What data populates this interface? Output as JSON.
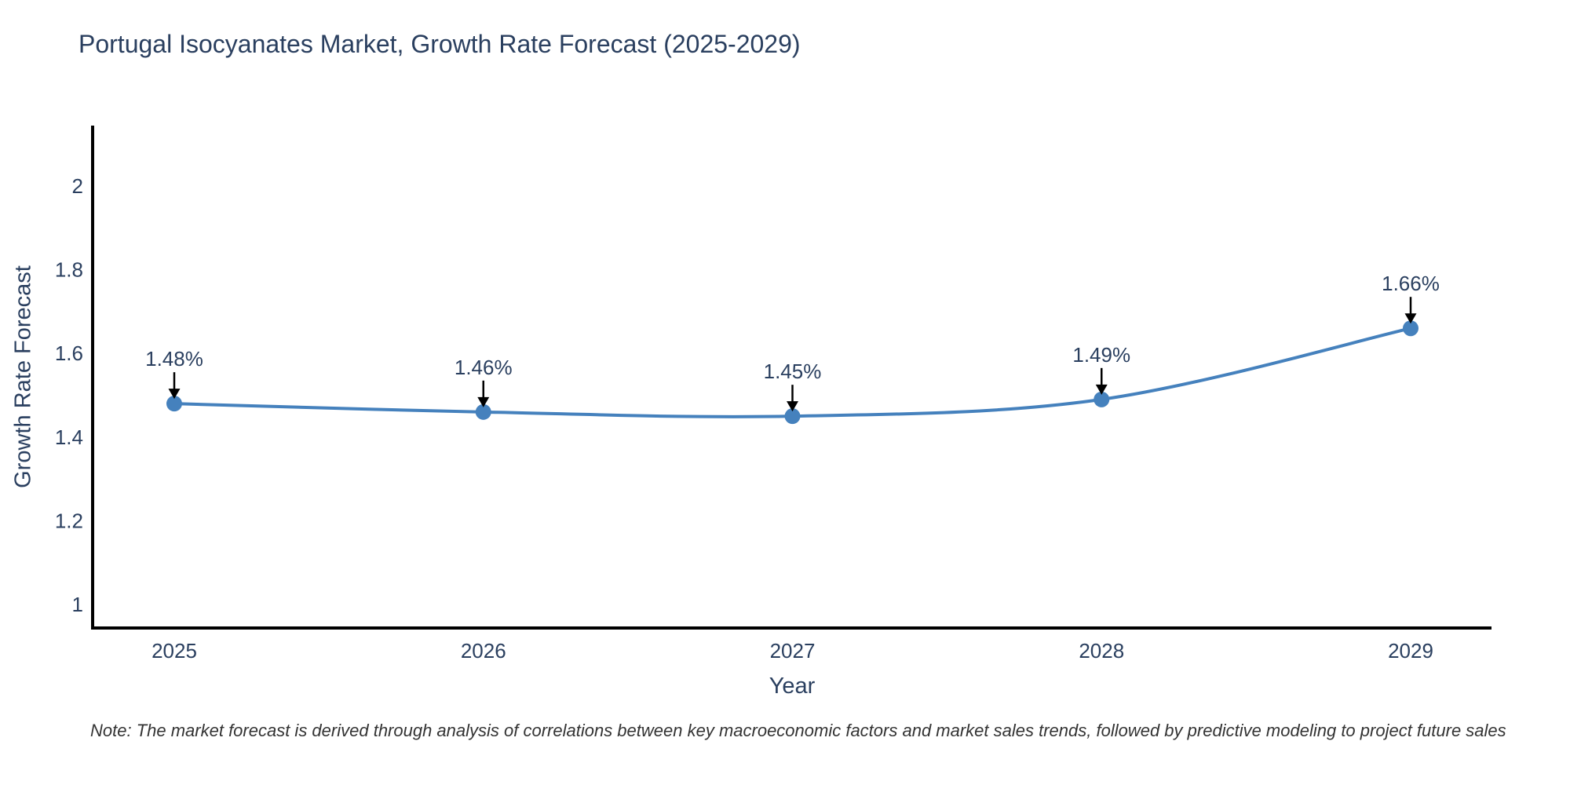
{
  "page": {
    "note": "Note: The market forecast is derived through analysis of correlations between key macroeconomic factors and market sales trends, followed by predictive modeling to project future sales"
  },
  "chart_data": {
    "type": "line",
    "title": "Portugal Isocyanates Market, Growth Rate Forecast (2025-2029)",
    "xlabel": "Year",
    "ylabel": "Growth Rate Forecast",
    "categories": [
      "2025",
      "2026",
      "2027",
      "2028",
      "2029"
    ],
    "series": [
      {
        "name": "Growth Rate Forecast",
        "values": [
          1.48,
          1.46,
          1.45,
          1.49,
          1.66
        ]
      }
    ],
    "point_labels": [
      "1.48%",
      "1.46%",
      "1.45%",
      "1.49%",
      "1.66%"
    ],
    "yticks": [
      1,
      1.2,
      1.4,
      1.6,
      1.8,
      2
    ],
    "ylim": [
      0.94,
      2.14
    ],
    "grid": false,
    "legend": false,
    "line_shape": "spline",
    "colors": {
      "line": "#4581bd",
      "marker": "#4581bd",
      "axis": "#000000",
      "text": "#2a3f5f",
      "arrow": "#000000"
    }
  }
}
